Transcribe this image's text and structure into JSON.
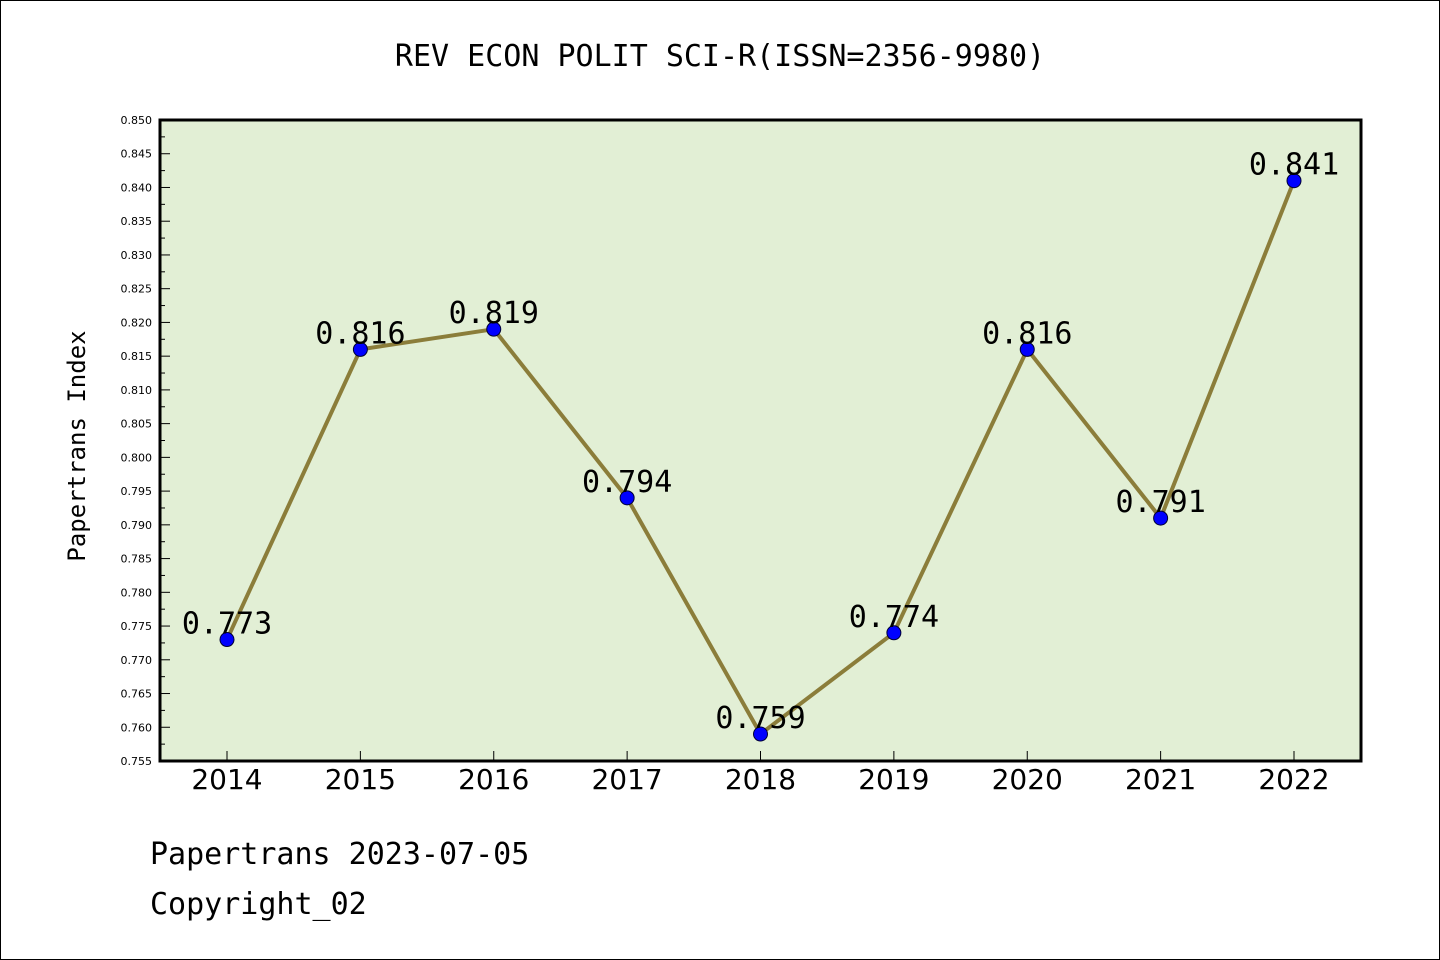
{
  "chart_data": {
    "type": "line",
    "title": "REV ECON POLIT SCI-R(ISSN=2356-9980)",
    "xlabel": "",
    "ylabel": "Papertrans Index",
    "categories": [
      "2014",
      "2015",
      "2016",
      "2017",
      "2018",
      "2019",
      "2020",
      "2021",
      "2022"
    ],
    "series": [
      {
        "values": [
          0.773,
          0.816,
          0.819,
          0.794,
          0.759,
          0.774,
          0.816,
          0.791,
          0.841
        ],
        "labels": [
          "0.773",
          "0.816",
          "0.819",
          "0.794",
          "0.759",
          "0.774",
          "0.816",
          "0.791",
          "0.841"
        ]
      }
    ],
    "ylim": [
      0.755,
      0.85
    ],
    "yticks": [
      "0.755",
      "0.760",
      "0.765",
      "0.770",
      "0.775",
      "0.780",
      "0.785",
      "0.790",
      "0.795",
      "0.800",
      "0.805",
      "0.810",
      "0.815",
      "0.820",
      "0.825",
      "0.830",
      "0.835",
      "0.840",
      "0.845",
      "0.850"
    ],
    "grid": false,
    "legend": "none",
    "colors": {
      "plot_background": "#e2efd5",
      "line": "#8b7d3a",
      "marker": "#0000ff"
    }
  },
  "footer": {
    "line1": "Papertrans 2023-07-05",
    "line2": "Copyright_02"
  }
}
